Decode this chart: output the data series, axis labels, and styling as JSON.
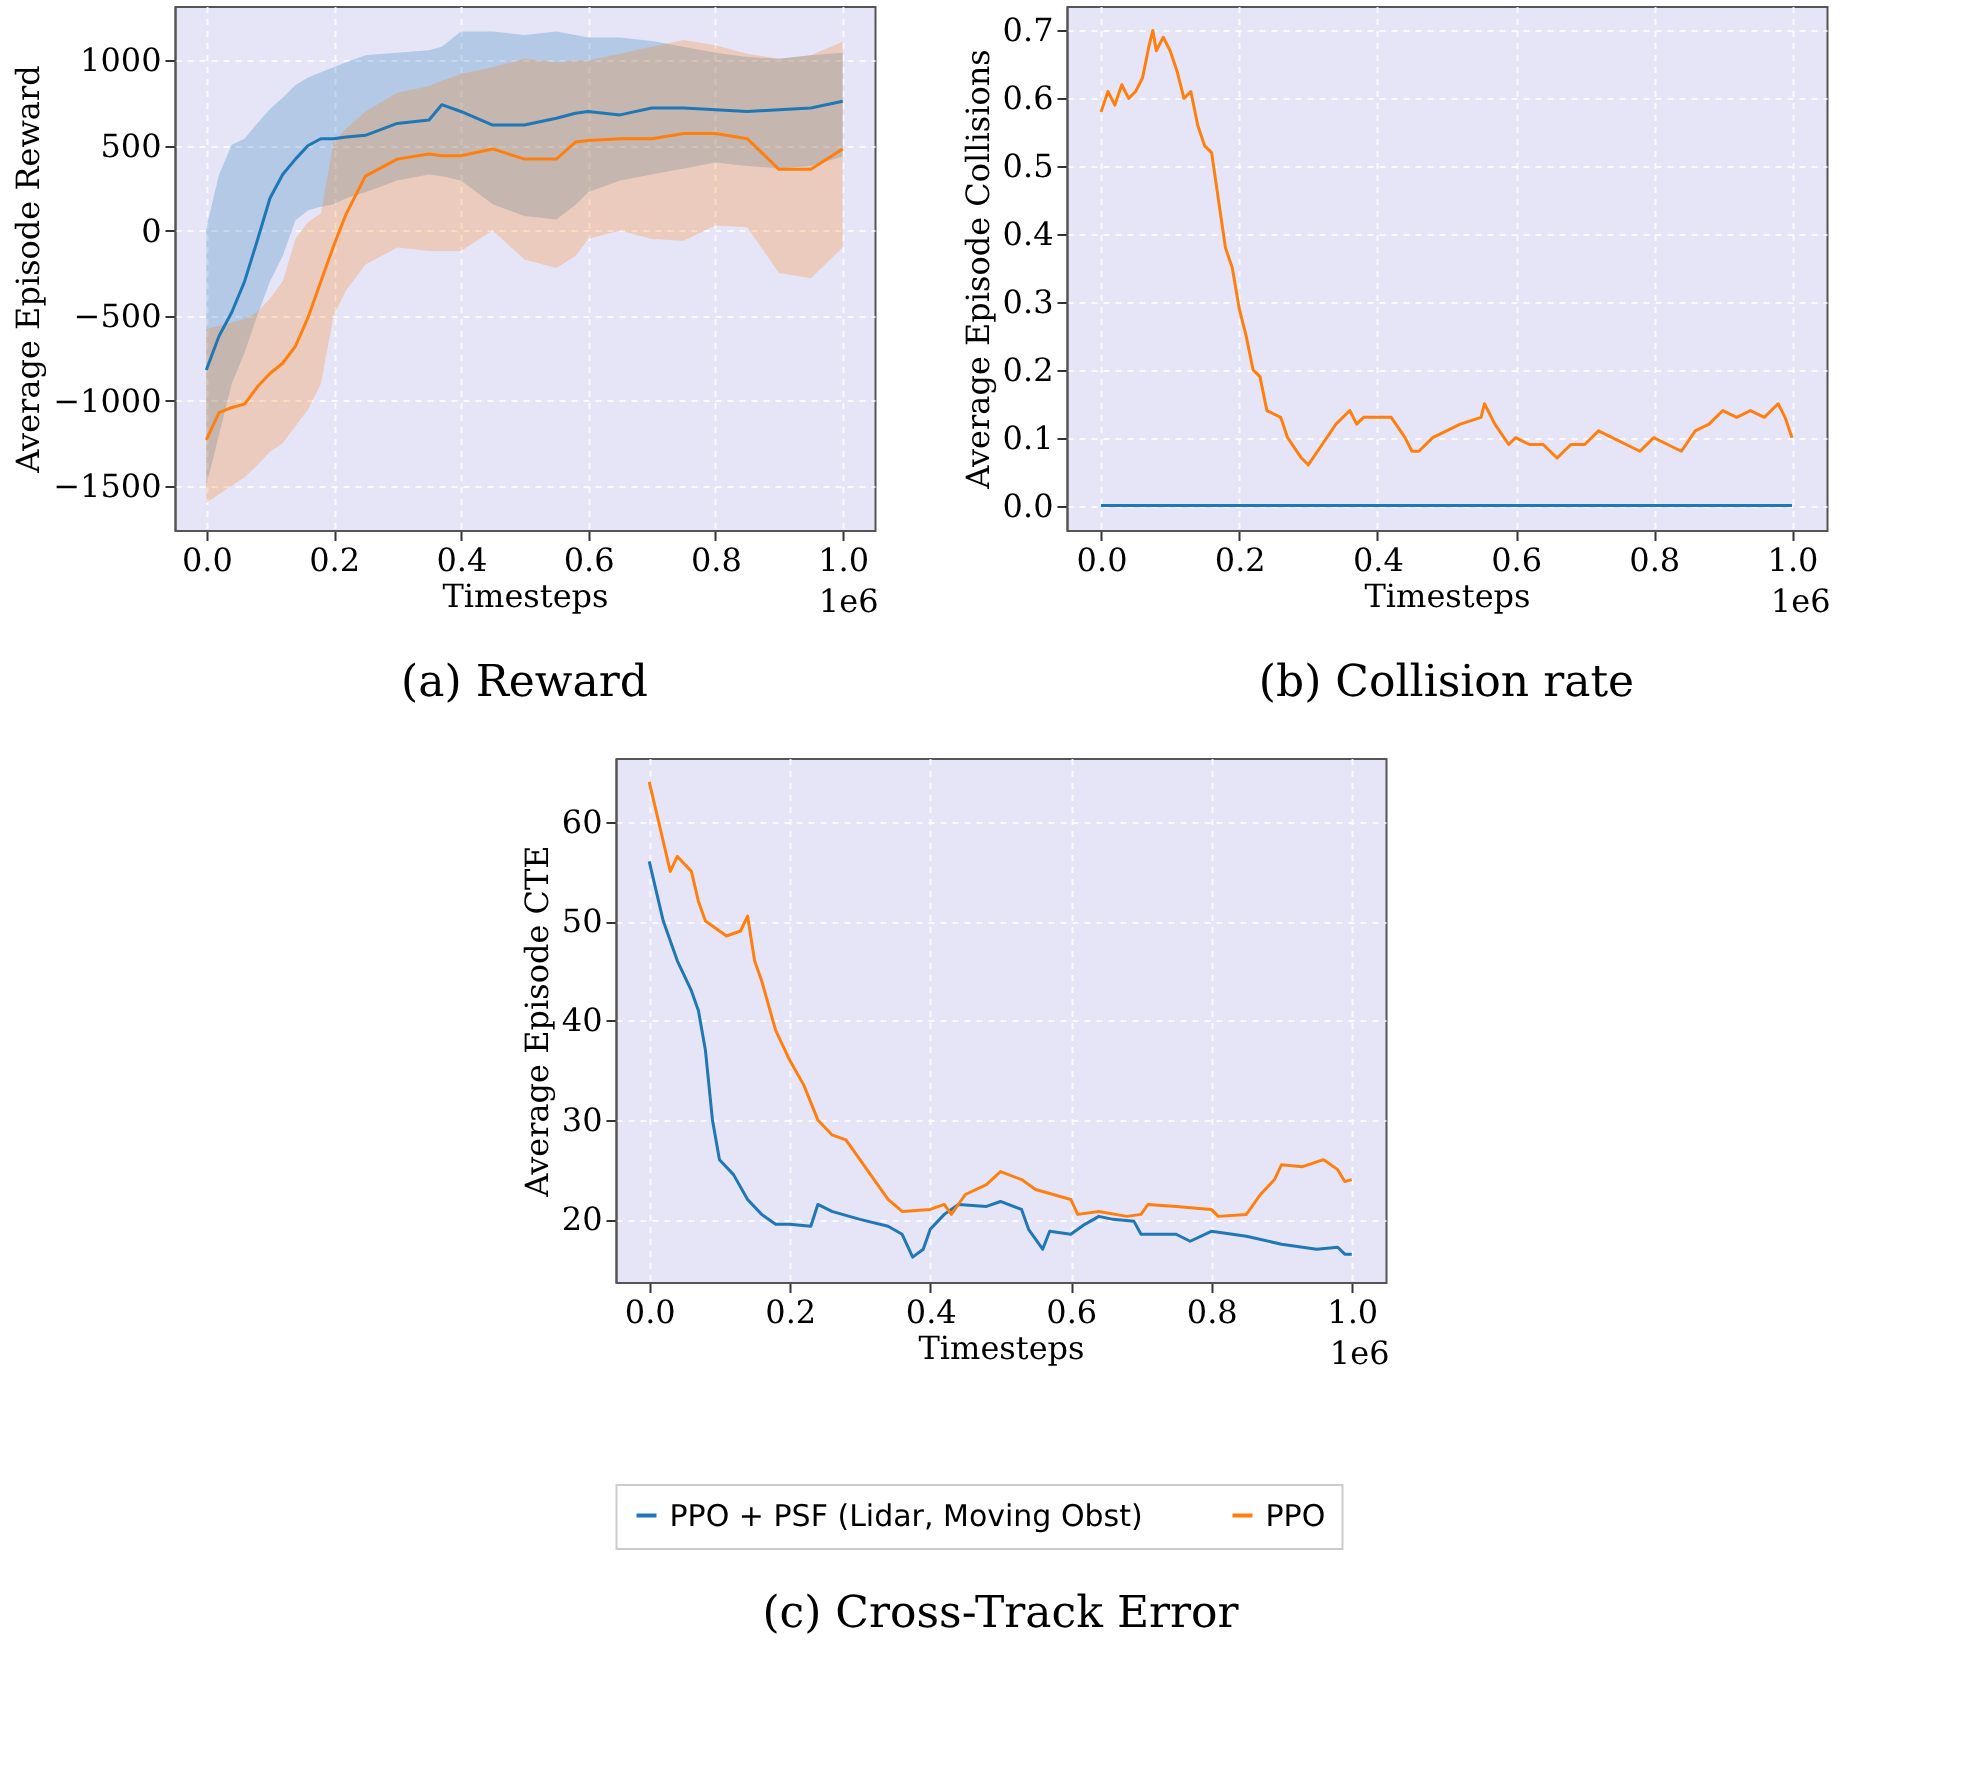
{
  "chart_data": [
    {
      "type": "line",
      "title": "(a) Reward",
      "xlabel": "Timesteps",
      "ylabel": "Average Episode Reward",
      "annotations": [
        "1e6"
      ],
      "x": [
        0,
        0.02,
        0.04,
        0.06,
        0.08,
        0.1,
        0.12,
        0.14,
        0.16,
        0.18,
        0.2,
        0.22,
        0.25,
        0.3,
        0.35,
        0.37,
        0.4,
        0.45,
        0.5,
        0.55,
        0.58,
        0.6,
        0.65,
        0.7,
        0.75,
        0.8,
        0.85,
        0.9,
        0.95,
        1.0
      ],
      "series": [
        {
          "color": "#1f77b4",
          "values": [
            -820,
            -620,
            -480,
            -300,
            -60,
            190,
            330,
            420,
            500,
            540,
            540,
            550,
            560,
            630,
            650,
            740,
            700,
            620,
            620,
            660,
            690,
            700,
            680,
            720,
            720,
            710,
            700,
            710,
            720,
            760
          ],
          "upper": [
            15,
            330,
            505,
            540,
            630,
            715,
            780,
            855,
            900,
            930,
            960,
            990,
            1030,
            1045,
            1060,
            1080,
            1170,
            1170,
            1150,
            1170,
            1150,
            1135,
            1135,
            1115,
            1080,
            1045,
            1020,
            1010,
            1030,
            1045
          ],
          "lower": [
            -1500,
            -1200,
            -900,
            -720,
            -500,
            -300,
            -150,
            60,
            120,
            140,
            155,
            190,
            225,
            295,
            330,
            320,
            295,
            155,
            85,
            65,
            150,
            225,
            295,
            330,
            365,
            400,
            380,
            365,
            380,
            435
          ]
        },
        {
          "color": "#ff7f0e",
          "values": [
            -1230,
            -1070,
            -1040,
            -1020,
            -920,
            -840,
            -780,
            -680,
            -510,
            -300,
            -90,
            100,
            320,
            420,
            450,
            440,
            440,
            480,
            420,
            420,
            520,
            530,
            540,
            540,
            570,
            570,
            540,
            360,
            360,
            480
          ],
          "upper": [
            -580,
            -560,
            -540,
            -520,
            -480,
            -400,
            -300,
            -50,
            50,
            100,
            520,
            600,
            700,
            810,
            850,
            880,
            920,
            960,
            1010,
            990,
            1000,
            1000,
            1040,
            1080,
            1120,
            1090,
            1040,
            1010,
            1030,
            1110
          ],
          "lower": [
            -1600,
            -1550,
            -1500,
            -1450,
            -1380,
            -1300,
            -1250,
            -1150,
            -1050,
            -900,
            -500,
            -350,
            -200,
            -100,
            -120,
            -120,
            -120,
            0,
            -170,
            -220,
            -150,
            -50,
            0,
            -50,
            -60,
            30,
            20,
            -250,
            -280,
            -100
          ]
        }
      ],
      "xlim": [
        -0.05,
        1.05
      ],
      "xticks": [
        {
          "value": 0,
          "label": "0.0"
        },
        {
          "value": 0.2,
          "label": "0.2"
        },
        {
          "value": 0.4,
          "label": "0.4"
        },
        {
          "value": 0.6,
          "label": "0.6"
        },
        {
          "value": 0.8,
          "label": "0.8"
        },
        {
          "value": 1.0,
          "label": "1.0"
        }
      ],
      "ylim": [
        -1760,
        1320
      ],
      "yticks": [
        {
          "value": -1500,
          "label": "−1500"
        },
        {
          "value": -1000,
          "label": "−1000"
        },
        {
          "value": -500,
          "label": "−500"
        },
        0,
        500,
        1000
      ],
      "grid": true,
      "legend": false
    },
    {
      "type": "line",
      "title": "(b) Collision rate",
      "xlabel": "Timesteps",
      "ylabel": "Average Episode Collisions",
      "annotations": [
        "1e6"
      ],
      "series": [
        {
          "color": "#1f77b4",
          "x": [
            0,
            1.0
          ],
          "values": [
            0,
            0
          ]
        },
        {
          "color": "#ff7f0e",
          "x": [
            0,
            0.01,
            0.02,
            0.03,
            0.04,
            0.05,
            0.06,
            0.07,
            0.075,
            0.08,
            0.09,
            0.1,
            0.11,
            0.12,
            0.13,
            0.14,
            0.15,
            0.16,
            0.17,
            0.18,
            0.19,
            0.2,
            0.21,
            0.22,
            0.23,
            0.24,
            0.26,
            0.27,
            0.29,
            0.3,
            0.32,
            0.34,
            0.36,
            0.37,
            0.38,
            0.42,
            0.44,
            0.45,
            0.46,
            0.48,
            0.5,
            0.52,
            0.55,
            0.555,
            0.57,
            0.59,
            0.6,
            0.62,
            0.64,
            0.66,
            0.68,
            0.7,
            0.72,
            0.74,
            0.76,
            0.78,
            0.8,
            0.82,
            0.84,
            0.86,
            0.88,
            0.9,
            0.92,
            0.94,
            0.96,
            0.98,
            0.99,
            1.0
          ],
          "values": [
            0.58,
            0.61,
            0.59,
            0.62,
            0.6,
            0.61,
            0.63,
            0.68,
            0.7,
            0.67,
            0.69,
            0.67,
            0.64,
            0.6,
            0.61,
            0.56,
            0.53,
            0.52,
            0.45,
            0.38,
            0.35,
            0.29,
            0.25,
            0.2,
            0.19,
            0.14,
            0.13,
            0.1,
            0.07,
            0.06,
            0.09,
            0.12,
            0.14,
            0.12,
            0.13,
            0.13,
            0.1,
            0.08,
            0.08,
            0.1,
            0.11,
            0.12,
            0.13,
            0.15,
            0.12,
            0.09,
            0.1,
            0.09,
            0.09,
            0.07,
            0.09,
            0.09,
            0.11,
            0.1,
            0.09,
            0.08,
            0.1,
            0.09,
            0.08,
            0.11,
            0.12,
            0.14,
            0.13,
            0.14,
            0.13,
            0.15,
            0.13,
            0.1
          ]
        }
      ],
      "xlim": [
        -0.05,
        1.05
      ],
      "xticks": [
        {
          "value": 0,
          "label": "0.0"
        },
        {
          "value": 0.2,
          "label": "0.2"
        },
        {
          "value": 0.4,
          "label": "0.4"
        },
        {
          "value": 0.6,
          "label": "0.6"
        },
        {
          "value": 0.8,
          "label": "0.8"
        },
        {
          "value": 1.0,
          "label": "1.0"
        }
      ],
      "ylim": [
        -0.036,
        0.736
      ],
      "yticks": [
        {
          "value": 0,
          "label": "0.0"
        },
        0.1,
        0.2,
        0.3,
        0.4,
        0.5,
        0.6,
        0.7
      ],
      "grid": true,
      "legend": false
    },
    {
      "type": "line",
      "title": "(c) Cross-Track Error",
      "xlabel": "Timesteps",
      "ylabel": "Average Episode CTE",
      "annotations": [
        "1e6"
      ],
      "series": [
        {
          "name": "PPO + PSF (Lidar, Moving Obst)",
          "color": "#1f77b4",
          "x": [
            0,
            0.02,
            0.04,
            0.06,
            0.07,
            0.08,
            0.09,
            0.1,
            0.12,
            0.14,
            0.16,
            0.18,
            0.2,
            0.23,
            0.24,
            0.26,
            0.3,
            0.34,
            0.36,
            0.375,
            0.39,
            0.4,
            0.42,
            0.44,
            0.48,
            0.5,
            0.53,
            0.54,
            0.56,
            0.57,
            0.6,
            0.62,
            0.64,
            0.66,
            0.69,
            0.7,
            0.75,
            0.77,
            0.8,
            0.85,
            0.9,
            0.95,
            0.98,
            0.99,
            1.0
          ],
          "values": [
            56,
            50,
            46,
            43,
            41,
            37,
            30,
            26,
            24.5,
            22,
            20.5,
            19.5,
            19.5,
            19.3,
            21.5,
            20.8,
            20,
            19.3,
            18.5,
            16.2,
            17,
            19,
            20.5,
            21.5,
            21.3,
            21.8,
            21,
            19,
            17,
            18.8,
            18.5,
            19.5,
            20.3,
            20,
            19.8,
            18.5,
            18.5,
            17.8,
            18.8,
            18.3,
            17.5,
            17,
            17.2,
            16.5,
            16.5
          ]
        },
        {
          "name": "PPO",
          "color": "#ff7f0e",
          "x": [
            0,
            0.01,
            0.02,
            0.03,
            0.04,
            0.06,
            0.07,
            0.08,
            0.1,
            0.11,
            0.13,
            0.14,
            0.15,
            0.16,
            0.18,
            0.2,
            0.22,
            0.24,
            0.26,
            0.28,
            0.3,
            0.32,
            0.34,
            0.36,
            0.4,
            0.42,
            0.43,
            0.45,
            0.48,
            0.5,
            0.53,
            0.55,
            0.6,
            0.61,
            0.64,
            0.68,
            0.7,
            0.71,
            0.75,
            0.8,
            0.81,
            0.85,
            0.87,
            0.89,
            0.9,
            0.93,
            0.96,
            0.98,
            0.99,
            1.0
          ],
          "values": [
            64,
            61,
            58,
            55,
            56.5,
            55,
            52,
            50,
            49,
            48.5,
            49,
            50.5,
            46,
            44,
            39,
            36,
            33.5,
            30,
            28.5,
            28,
            26,
            24,
            22,
            20.8,
            21,
            21.5,
            20.5,
            22.5,
            23.5,
            24.8,
            24,
            23,
            22,
            20.5,
            20.8,
            20.3,
            20.5,
            21.5,
            21.3,
            21,
            20.3,
            20.5,
            22.5,
            24,
            25.5,
            25.3,
            26,
            25,
            23.8,
            24
          ]
        }
      ],
      "xlim": [
        -0.048,
        1.048
      ],
      "xticks": [
        {
          "value": 0,
          "label": "0.0"
        },
        {
          "value": 0.2,
          "label": "0.2"
        },
        {
          "value": 0.4,
          "label": "0.4"
        },
        {
          "value": 0.6,
          "label": "0.6"
        },
        {
          "value": 0.8,
          "label": "0.8"
        },
        {
          "value": 1.0,
          "label": "1.0"
        }
      ],
      "ylim": [
        13.7,
        66.4
      ],
      "yticks": [
        20,
        30,
        40,
        50,
        60
      ],
      "grid": true,
      "legend": "bottom"
    }
  ]
}
